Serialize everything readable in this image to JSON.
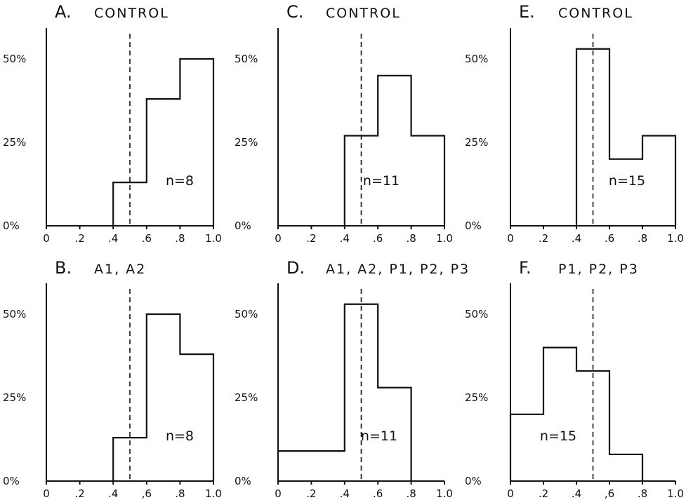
{
  "chart_data": [
    {
      "id": "A",
      "type": "step-histogram",
      "letter": "A.",
      "title": "CONTROL",
      "x_edges": [
        0,
        0.2,
        0.4,
        0.6,
        0.8,
        1.0
      ],
      "values": [
        0,
        0,
        13,
        38,
        50
      ],
      "annotation": "n=8",
      "reference_line_x": 0.5,
      "xticks": [
        "0",
        ".2",
        ".4",
        ".6",
        ".8",
        "1.0"
      ],
      "yticks": [
        "0%",
        "25%",
        "50%"
      ],
      "xlim": [
        0,
        1.0
      ],
      "ylim": [
        0,
        60
      ]
    },
    {
      "id": "C",
      "type": "step-histogram",
      "letter": "C.",
      "title": "CONTROL",
      "x_edges": [
        0,
        0.2,
        0.4,
        0.6,
        0.8,
        1.0
      ],
      "values": [
        0,
        0,
        27,
        45,
        27
      ],
      "annotation": "n=11",
      "reference_line_x": 0.5,
      "xticks": [
        "0",
        ".2",
        ".4",
        ".6",
        ".8",
        "1.0"
      ],
      "yticks": [
        "0%",
        "25%",
        "50%"
      ],
      "xlim": [
        0,
        1.0
      ],
      "ylim": [
        0,
        60
      ]
    },
    {
      "id": "E",
      "type": "step-histogram",
      "letter": "E.",
      "title": "CONTROL",
      "x_edges": [
        0,
        0.2,
        0.4,
        0.6,
        0.8,
        1.0
      ],
      "values": [
        0,
        0,
        53,
        20,
        27
      ],
      "annotation": "n=15",
      "reference_line_x": 0.5,
      "xticks": [
        "0",
        ".2",
        ".4",
        ".6",
        ".8",
        "1.0"
      ],
      "yticks": [
        "0%",
        "25%",
        "50%"
      ],
      "xlim": [
        0,
        1.0
      ],
      "ylim": [
        0,
        60
      ]
    },
    {
      "id": "B",
      "type": "step-histogram",
      "letter": "B.",
      "title": "A1, A2",
      "x_edges": [
        0,
        0.2,
        0.4,
        0.6,
        0.8,
        1.0
      ],
      "values": [
        0,
        0,
        13,
        50,
        38
      ],
      "annotation": "n=8",
      "reference_line_x": 0.5,
      "xticks": [
        "0",
        ".2",
        ".4",
        ",6",
        ".8",
        "1.0"
      ],
      "yticks": [
        "0%",
        "25%",
        "50%"
      ],
      "xlim": [
        0,
        1.0
      ],
      "ylim": [
        0,
        60
      ]
    },
    {
      "id": "D",
      "type": "step-histogram",
      "letter": "D.",
      "title": "A1, A2, P1, P2, P3",
      "x_edges": [
        0,
        0.2,
        0.4,
        0.6,
        0.8,
        1.0
      ],
      "values": [
        9,
        9,
        53,
        28,
        0
      ],
      "annotation": "n=11",
      "reference_line_x": 0.5,
      "xticks": [
        "0",
        ".2",
        ".4",
        ".6",
        ".8",
        "1.0"
      ],
      "yticks": [
        "0%",
        "25%",
        "50%"
      ],
      "xlim": [
        0,
        1.0
      ],
      "ylim": [
        0,
        60
      ]
    },
    {
      "id": "F",
      "type": "step-histogram",
      "letter": "F.",
      "title": "P1, P2, P3",
      "x_edges": [
        0,
        0.2,
        0.4,
        0.6,
        0.8,
        1.0
      ],
      "values": [
        20,
        40,
        33,
        8,
        0
      ],
      "annotation": "n=15",
      "reference_line_x": 0.5,
      "xticks": [
        "0",
        ".2",
        ".4",
        ",6",
        ".8",
        "1.0"
      ],
      "yticks": [
        "0%",
        "25%",
        "50%"
      ],
      "xlim": [
        0,
        1.0
      ],
      "ylim": [
        0,
        60
      ]
    }
  ]
}
